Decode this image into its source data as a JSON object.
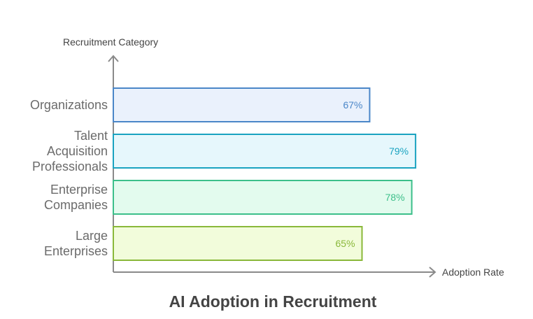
{
  "chart_data": {
    "type": "bar",
    "orientation": "horizontal",
    "title": "AI Adoption in Recruitment",
    "y_label": "Recruitment Category",
    "x_label": "Adoption Rate",
    "categories": [
      "Organizations",
      "Talent Acquisition Professionals",
      "Enterprise Companies",
      "Large Enterprises"
    ],
    "values": [
      67,
      79,
      78,
      65
    ],
    "value_labels": [
      "67%",
      "79%",
      "78%",
      "65%"
    ],
    "colors": [
      "#4a86c8",
      "#1aa3c0",
      "#3cbf8a",
      "#8ab83a"
    ],
    "fills": [
      "#eaf1fc",
      "#e6f7fc",
      "#e3fbee",
      "#f2fcdb"
    ]
  }
}
